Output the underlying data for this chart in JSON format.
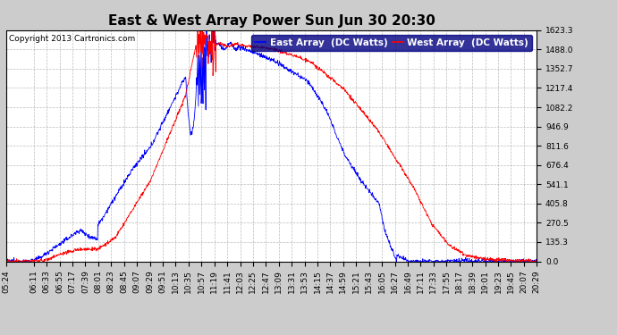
{
  "title": "East & West Array Power Sun Jun 30 20:30",
  "copyright": "Copyright 2013 Cartronics.com",
  "ylabel_east": "East Array  (DC Watts)",
  "ylabel_west": "West Array  (DC Watts)",
  "east_color": "#0000FF",
  "west_color": "#FF0000",
  "background_color": "#CCCCCC",
  "plot_background": "#FFFFFF",
  "grid_color": "#AAAAAA",
  "ylim": [
    0.0,
    1623.3
  ],
  "yticks": [
    0.0,
    135.3,
    270.5,
    405.8,
    541.1,
    676.4,
    811.6,
    946.9,
    1082.2,
    1217.4,
    1352.7,
    1488.0,
    1623.3
  ],
  "x_labels": [
    "05:24",
    "06:11",
    "06:33",
    "06:55",
    "07:17",
    "07:39",
    "08:01",
    "08:23",
    "08:45",
    "09:07",
    "09:29",
    "09:51",
    "10:13",
    "10:35",
    "10:57",
    "11:19",
    "11:41",
    "12:03",
    "12:25",
    "12:47",
    "13:09",
    "13:31",
    "13:53",
    "14:15",
    "14:37",
    "14:59",
    "15:21",
    "15:43",
    "16:05",
    "16:27",
    "16:49",
    "17:11",
    "17:33",
    "17:55",
    "18:17",
    "18:39",
    "19:01",
    "19:23",
    "19:45",
    "20:07",
    "20:29"
  ],
  "title_fontsize": 11,
  "legend_fontsize": 7.5,
  "tick_fontsize": 6.5
}
